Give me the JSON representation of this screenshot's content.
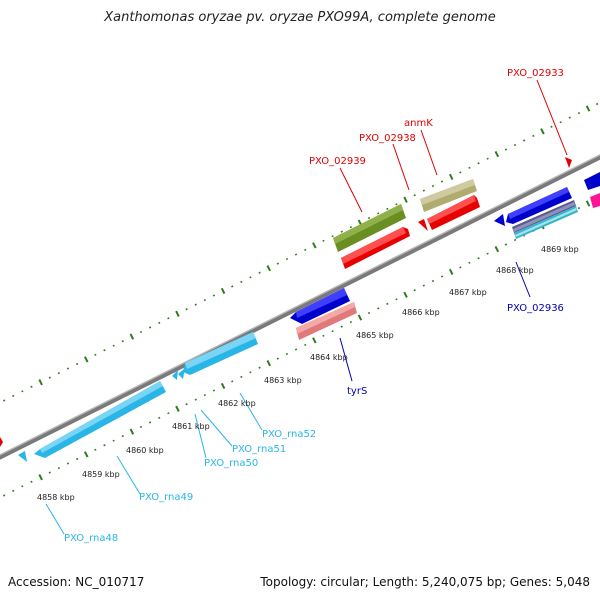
{
  "title": "Xanthomonas oryzae pv. oryzae PXO99A, complete genome",
  "accession_label": "Accession: NC_010717",
  "topology_label": "Topology: circular; Length: 5,240,075 bp; Genes: 5,048",
  "colors": {
    "backbone": "#808080",
    "tick": "#2e7d1e",
    "gene_red_label": "#e00000",
    "gene_blue_label": "#0000b0",
    "rna_label": "#29b6e6",
    "kbp_label": "#222222"
  },
  "scale_labels": [
    "4858 kbp",
    "4859 kbp",
    "4860 kbp",
    "4861 kbp",
    "4862 kbp",
    "4863 kbp",
    "4864 kbp",
    "4865 kbp",
    "4866 kbp",
    "4867 kbp",
    "4868 kbp",
    "4869 kbp"
  ],
  "feature_labels": {
    "pxo_02933": "PXO_02933",
    "anmk": "anmK",
    "pxo_02938": "PXO_02938",
    "pxo_02939": "PXO_02939",
    "pxo_02936": "PXO_02936",
    "tyrs": "tyrS",
    "pxo_rna52": "PXO_rna52",
    "pxo_rna51": "PXO_rna51",
    "pxo_rna50": "PXO_rna50",
    "pxo_rna49": "PXO_rna49",
    "pxo_rna48": "PXO_rna48"
  },
  "icons": {
    "strand_arrow": "arrow-head"
  }
}
